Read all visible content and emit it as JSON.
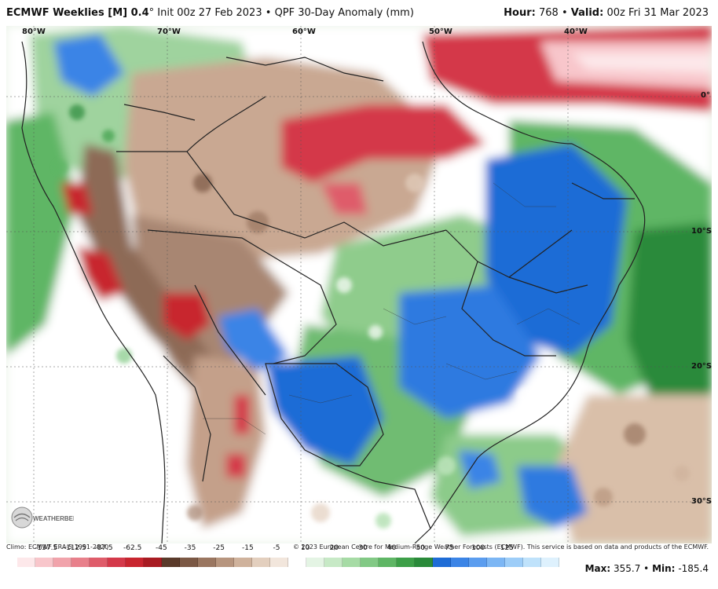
{
  "header": {
    "model": "ECMWF Weeklies [M] 0.4",
    "degree": "°",
    "init": "Init 00z 27 Feb 2023",
    "separator": "•",
    "product": "QPF 30-Day Anomaly (mm)",
    "hour_label": "Hour:",
    "hour_value": "768",
    "valid_label": "Valid:",
    "valid_value": "00z Fri 31 Mar 2023"
  },
  "map": {
    "lon_labels": [
      "80°W",
      "70°W",
      "60°W",
      "50°W",
      "40°W"
    ],
    "lat_labels": [
      "0°",
      "10°S",
      "20°S",
      "30°S"
    ]
  },
  "logo": {
    "text": "WEATHERBELL"
  },
  "footer": {
    "climo": "Climo: ECMWF ERA-5 1991-2020",
    "copyright": "© 2023 European Centre for Medium-Range Weather Forecasts (ECMWF). This service is based on data and products of the ECMWF.",
    "max_label": "Max:",
    "max_value": "355.7",
    "min_label": "Min:",
    "min_value": "-185.4"
  },
  "colorbar": {
    "labels": [
      "-137.5",
      "-112.5",
      "-87.5",
      "-62.5",
      "-45",
      "-35",
      "-25",
      "-15",
      "-5",
      "10",
      "20",
      "30",
      "40",
      "50",
      "75",
      "100",
      "125"
    ],
    "colors": [
      "#fde8ea",
      "#f8c6cb",
      "#f1a3ab",
      "#e8808b",
      "#df5c6a",
      "#d4394a",
      "#c8252f",
      "#a81b22",
      "#5a3a2a",
      "#7b5844",
      "#9a7660",
      "#b7957e",
      "#cfb29c",
      "#e3cfbe",
      "#f2e6dc",
      "#ffffff",
      "#e4f4e4",
      "#c7e9c6",
      "#a6dba5",
      "#82c985",
      "#5fb665",
      "#3d9f48",
      "#2a8a3a",
      "#1e6cd6",
      "#3b84e6",
      "#5b9def",
      "#7cb6f4",
      "#9dcdf8",
      "#bfe2fb",
      "#def1fd"
    ]
  }
}
